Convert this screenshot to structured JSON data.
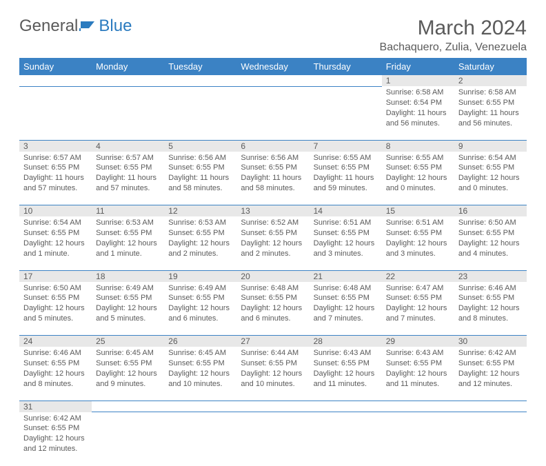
{
  "brand": {
    "general": "General",
    "blue": "Blue"
  },
  "title": "March 2024",
  "location": "Bachaquero, Zulia, Venezuela",
  "colors": {
    "header_bg": "#3b82c4",
    "header_fg": "#ffffff",
    "daynum_bg": "#e8e8e8",
    "text": "#5a5a5a",
    "rule": "#3b82c4"
  },
  "weekdays": [
    "Sunday",
    "Monday",
    "Tuesday",
    "Wednesday",
    "Thursday",
    "Friday",
    "Saturday"
  ],
  "weeks": [
    [
      null,
      null,
      null,
      null,
      null,
      {
        "n": "1",
        "sr": "Sunrise: 6:58 AM",
        "ss": "Sunset: 6:54 PM",
        "dl": "Daylight: 11 hours and 56 minutes."
      },
      {
        "n": "2",
        "sr": "Sunrise: 6:58 AM",
        "ss": "Sunset: 6:55 PM",
        "dl": "Daylight: 11 hours and 56 minutes."
      }
    ],
    [
      {
        "n": "3",
        "sr": "Sunrise: 6:57 AM",
        "ss": "Sunset: 6:55 PM",
        "dl": "Daylight: 11 hours and 57 minutes."
      },
      {
        "n": "4",
        "sr": "Sunrise: 6:57 AM",
        "ss": "Sunset: 6:55 PM",
        "dl": "Daylight: 11 hours and 57 minutes."
      },
      {
        "n": "5",
        "sr": "Sunrise: 6:56 AM",
        "ss": "Sunset: 6:55 PM",
        "dl": "Daylight: 11 hours and 58 minutes."
      },
      {
        "n": "6",
        "sr": "Sunrise: 6:56 AM",
        "ss": "Sunset: 6:55 PM",
        "dl": "Daylight: 11 hours and 58 minutes."
      },
      {
        "n": "7",
        "sr": "Sunrise: 6:55 AM",
        "ss": "Sunset: 6:55 PM",
        "dl": "Daylight: 11 hours and 59 minutes."
      },
      {
        "n": "8",
        "sr": "Sunrise: 6:55 AM",
        "ss": "Sunset: 6:55 PM",
        "dl": "Daylight: 12 hours and 0 minutes."
      },
      {
        "n": "9",
        "sr": "Sunrise: 6:54 AM",
        "ss": "Sunset: 6:55 PM",
        "dl": "Daylight: 12 hours and 0 minutes."
      }
    ],
    [
      {
        "n": "10",
        "sr": "Sunrise: 6:54 AM",
        "ss": "Sunset: 6:55 PM",
        "dl": "Daylight: 12 hours and 1 minute."
      },
      {
        "n": "11",
        "sr": "Sunrise: 6:53 AM",
        "ss": "Sunset: 6:55 PM",
        "dl": "Daylight: 12 hours and 1 minute."
      },
      {
        "n": "12",
        "sr": "Sunrise: 6:53 AM",
        "ss": "Sunset: 6:55 PM",
        "dl": "Daylight: 12 hours and 2 minutes."
      },
      {
        "n": "13",
        "sr": "Sunrise: 6:52 AM",
        "ss": "Sunset: 6:55 PM",
        "dl": "Daylight: 12 hours and 2 minutes."
      },
      {
        "n": "14",
        "sr": "Sunrise: 6:51 AM",
        "ss": "Sunset: 6:55 PM",
        "dl": "Daylight: 12 hours and 3 minutes."
      },
      {
        "n": "15",
        "sr": "Sunrise: 6:51 AM",
        "ss": "Sunset: 6:55 PM",
        "dl": "Daylight: 12 hours and 3 minutes."
      },
      {
        "n": "16",
        "sr": "Sunrise: 6:50 AM",
        "ss": "Sunset: 6:55 PM",
        "dl": "Daylight: 12 hours and 4 minutes."
      }
    ],
    [
      {
        "n": "17",
        "sr": "Sunrise: 6:50 AM",
        "ss": "Sunset: 6:55 PM",
        "dl": "Daylight: 12 hours and 5 minutes."
      },
      {
        "n": "18",
        "sr": "Sunrise: 6:49 AM",
        "ss": "Sunset: 6:55 PM",
        "dl": "Daylight: 12 hours and 5 minutes."
      },
      {
        "n": "19",
        "sr": "Sunrise: 6:49 AM",
        "ss": "Sunset: 6:55 PM",
        "dl": "Daylight: 12 hours and 6 minutes."
      },
      {
        "n": "20",
        "sr": "Sunrise: 6:48 AM",
        "ss": "Sunset: 6:55 PM",
        "dl": "Daylight: 12 hours and 6 minutes."
      },
      {
        "n": "21",
        "sr": "Sunrise: 6:48 AM",
        "ss": "Sunset: 6:55 PM",
        "dl": "Daylight: 12 hours and 7 minutes."
      },
      {
        "n": "22",
        "sr": "Sunrise: 6:47 AM",
        "ss": "Sunset: 6:55 PM",
        "dl": "Daylight: 12 hours and 7 minutes."
      },
      {
        "n": "23",
        "sr": "Sunrise: 6:46 AM",
        "ss": "Sunset: 6:55 PM",
        "dl": "Daylight: 12 hours and 8 minutes."
      }
    ],
    [
      {
        "n": "24",
        "sr": "Sunrise: 6:46 AM",
        "ss": "Sunset: 6:55 PM",
        "dl": "Daylight: 12 hours and 8 minutes."
      },
      {
        "n": "25",
        "sr": "Sunrise: 6:45 AM",
        "ss": "Sunset: 6:55 PM",
        "dl": "Daylight: 12 hours and 9 minutes."
      },
      {
        "n": "26",
        "sr": "Sunrise: 6:45 AM",
        "ss": "Sunset: 6:55 PM",
        "dl": "Daylight: 12 hours and 10 minutes."
      },
      {
        "n": "27",
        "sr": "Sunrise: 6:44 AM",
        "ss": "Sunset: 6:55 PM",
        "dl": "Daylight: 12 hours and 10 minutes."
      },
      {
        "n": "28",
        "sr": "Sunrise: 6:43 AM",
        "ss": "Sunset: 6:55 PM",
        "dl": "Daylight: 12 hours and 11 minutes."
      },
      {
        "n": "29",
        "sr": "Sunrise: 6:43 AM",
        "ss": "Sunset: 6:55 PM",
        "dl": "Daylight: 12 hours and 11 minutes."
      },
      {
        "n": "30",
        "sr": "Sunrise: 6:42 AM",
        "ss": "Sunset: 6:55 PM",
        "dl": "Daylight: 12 hours and 12 minutes."
      }
    ],
    [
      {
        "n": "31",
        "sr": "Sunrise: 6:42 AM",
        "ss": "Sunset: 6:55 PM",
        "dl": "Daylight: 12 hours and 12 minutes."
      },
      null,
      null,
      null,
      null,
      null,
      null
    ]
  ]
}
